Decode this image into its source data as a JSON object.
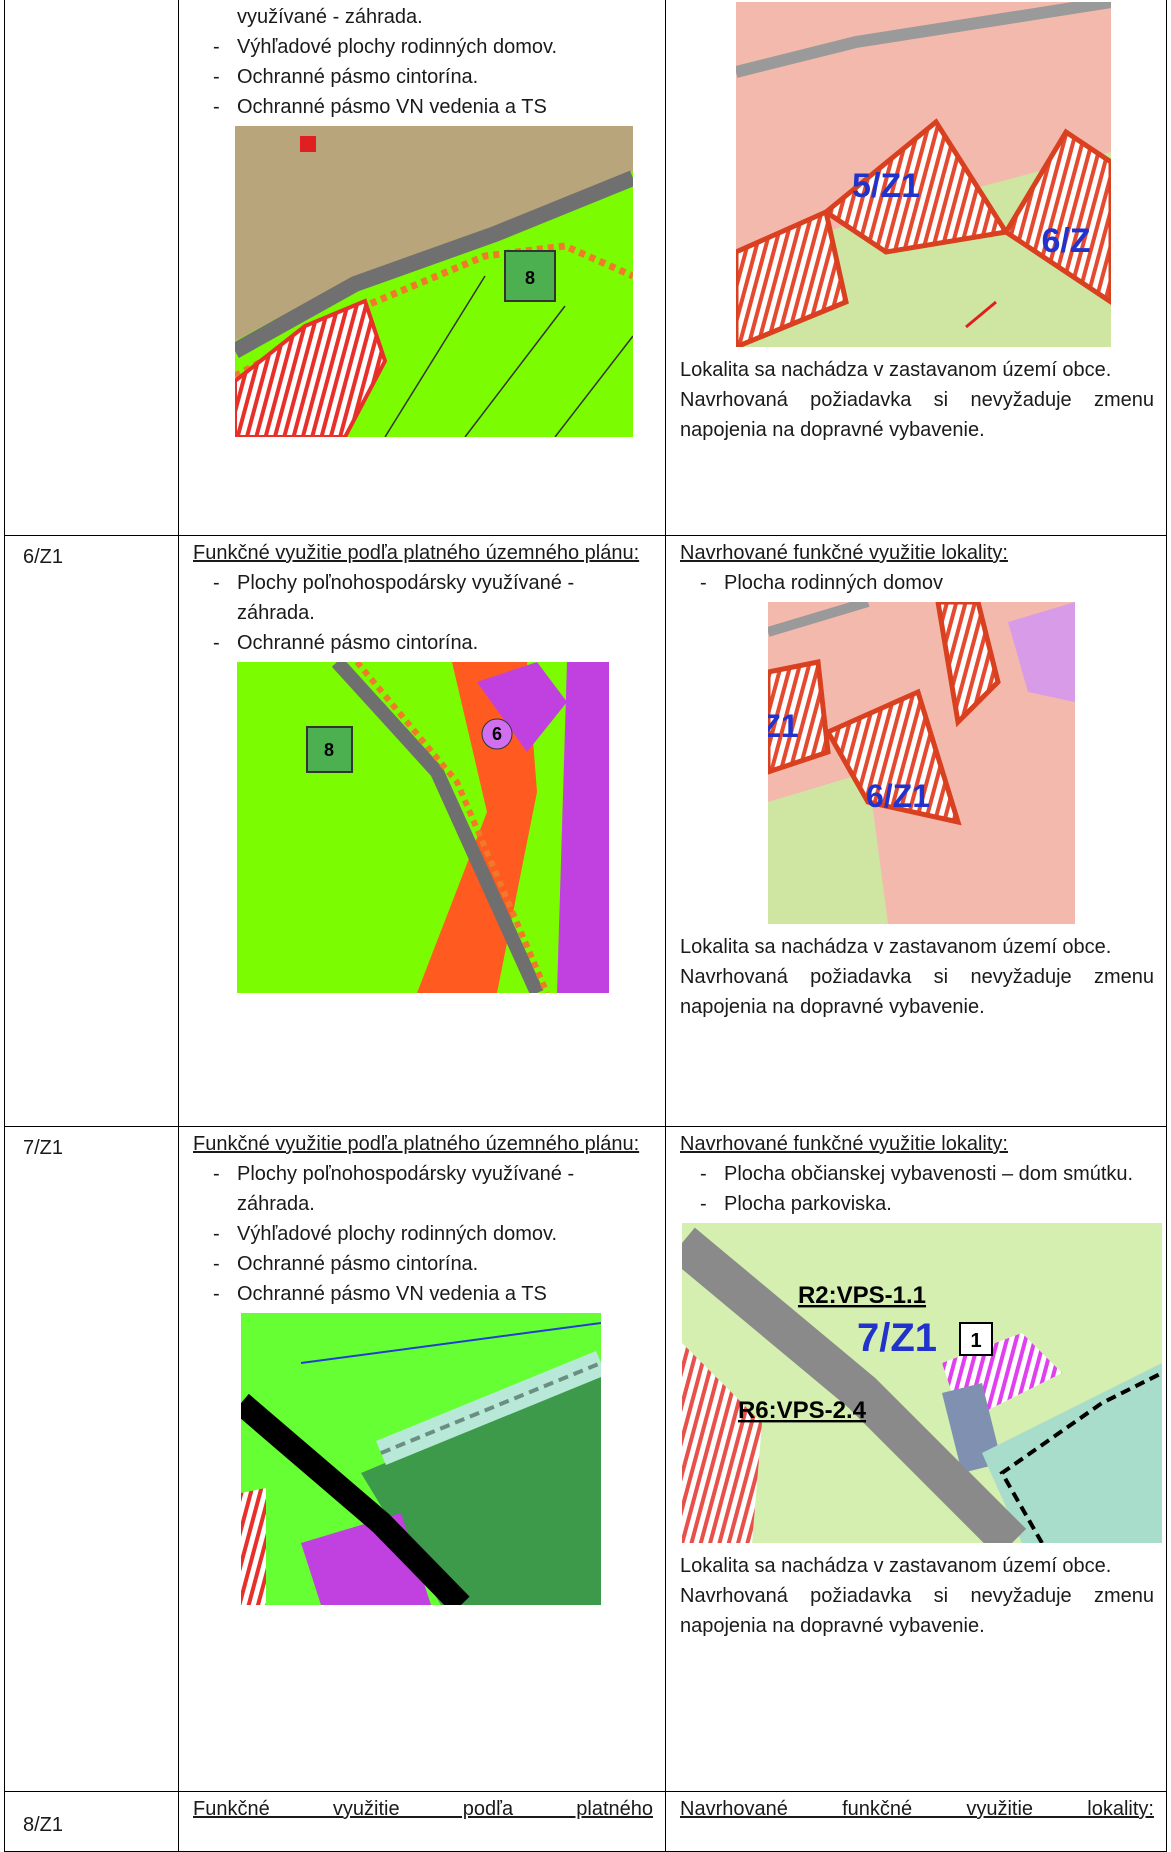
{
  "table": {
    "rows": [
      {
        "existing": {
          "continuation": "využívané - záhrada.",
          "items": [
            "Výhľadové plochy rodinných domov.",
            "Ochranné pásmo cintorína.",
            "Ochranné pásmo VN vedenia a TS"
          ],
          "map_labels": [
            "8"
          ]
        },
        "proposed": {
          "map_labels": [
            "5/Z1",
            "6/Z"
          ],
          "notes": [
            "Lokalita sa nachádza v zastavanom území obce.",
            "Navrhovaná požiadavka si nevyžaduje zmenu napojenia na dopravné vybavenie."
          ]
        }
      },
      {
        "id": "6/Z1",
        "existing": {
          "heading": "Funkčné využitie podľa platného územného plánu:",
          "items": [
            "Plochy poľnohospodársky využívané - záhrada.",
            "Ochranné pásmo cintorína."
          ],
          "map_labels": [
            "8",
            "6"
          ]
        },
        "proposed": {
          "heading": "Navrhované funkčné využitie lokality:",
          "items": [
            "Plocha rodinných domov"
          ],
          "map_labels": [
            "Z1",
            "6/Z1"
          ],
          "notes": [
            "Lokalita sa nachádza v zastavanom území obce.",
            "Navrhovaná požiadavka si nevyžaduje zmenu napojenia na dopravné vybavenie."
          ]
        }
      },
      {
        "id": "7/Z1",
        "existing": {
          "heading": "Funkčné využitie podľa platného územného plánu:",
          "items": [
            "Plochy poľnohospodársky využívané - záhrada.",
            "Výhľadové plochy rodinných domov.",
            "Ochranné pásmo cintorína.",
            "Ochranné pásmo VN vedenia a TS"
          ],
          "map_labels": []
        },
        "proposed": {
          "heading": "Navrhované funkčné využitie lokality:",
          "items": [
            "Plocha občianskej vybavenosti – dom smútku.",
            "Plocha parkoviska."
          ],
          "map_labels": [
            "R2:VPS-1.1",
            "7/Z1",
            "1",
            "R6:VPS-2.4"
          ],
          "notes": [
            "Lokalita sa nachádza v zastavanom území obce.",
            "Navrhovaná požiadavka si nevyžaduje zmenu napojenia na dopravné vybavenie."
          ]
        }
      },
      {
        "id": "8/Z1",
        "existing": {
          "heading": "Funkčné využitie podľa platného"
        },
        "proposed": {
          "heading": "Navrhované funkčné využitie lokality:"
        }
      }
    ]
  }
}
